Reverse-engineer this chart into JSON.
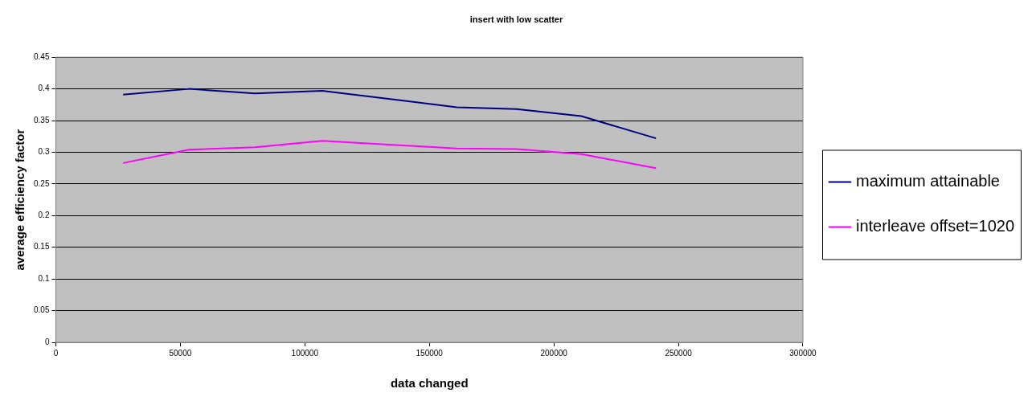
{
  "chart_data": {
    "type": "line",
    "title": "insert with low scatter",
    "xlabel": "data changed",
    "ylabel": "average efficiency factor",
    "x": [
      27000,
      53500,
      80000,
      107000,
      161000,
      185000,
      211000,
      241000
    ],
    "series": [
      {
        "name": "maximum attainable",
        "color": "#000080",
        "values": [
          0.391,
          0.4,
          0.393,
          0.397,
          0.371,
          0.368,
          0.357,
          0.322
        ]
      },
      {
        "name": "interleave offset=1020",
        "color": "#ff00ff",
        "values": [
          0.283,
          0.304,
          0.308,
          0.318,
          0.306,
          0.305,
          0.297,
          0.275
        ]
      }
    ],
    "xlim": [
      0,
      300000
    ],
    "xticks": [
      0,
      50000,
      100000,
      150000,
      200000,
      250000,
      300000
    ],
    "ylim": [
      0,
      0.45
    ],
    "yticks": [
      0,
      0.05,
      0.1,
      0.15,
      0.2,
      0.25,
      0.3,
      0.35,
      0.4,
      0.45
    ],
    "grid": "y",
    "legend": "right",
    "marker": "none",
    "line_style": "solid"
  }
}
